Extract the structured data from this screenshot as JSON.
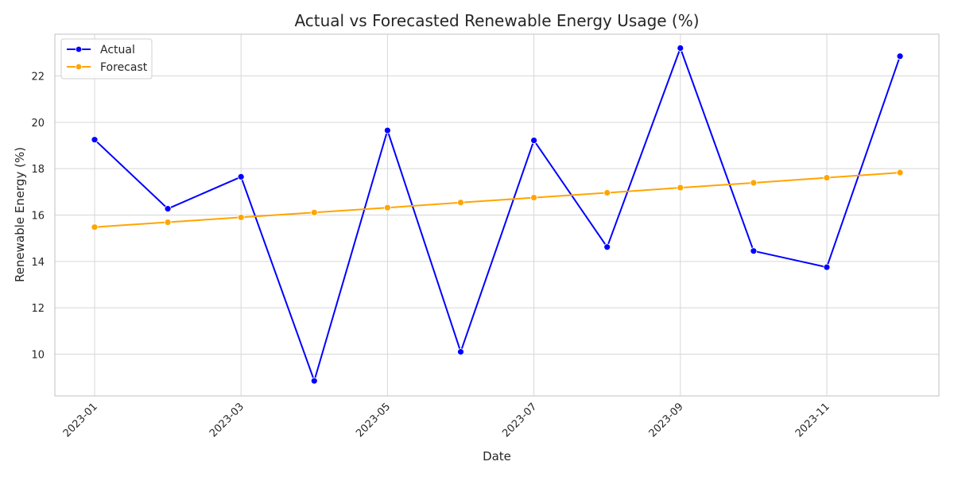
{
  "chart_data": {
    "type": "line",
    "title": "Actual vs Forecasted Renewable Energy Usage (%)",
    "xlabel": "Date",
    "ylabel": "Renewable Energy (%)",
    "x": [
      "2023-01",
      "2023-02",
      "2023-03",
      "2023-04",
      "2023-05",
      "2023-06",
      "2023-07",
      "2023-08",
      "2023-09",
      "2023-10",
      "2023-11",
      "2023-12"
    ],
    "x_tick_labels": [
      "2023-01",
      "2023-03",
      "2023-05",
      "2023-07",
      "2023-09",
      "2023-11"
    ],
    "y_ticks": [
      10,
      12,
      14,
      16,
      18,
      20,
      22
    ],
    "ylim": [
      8.2,
      23.8
    ],
    "grid": true,
    "legend_position": "top-left",
    "series": [
      {
        "name": "Actual",
        "color": "#0000ff",
        "values": [
          19.25,
          16.27,
          17.65,
          8.85,
          19.65,
          10.1,
          19.22,
          14.62,
          23.2,
          14.45,
          13.75,
          22.85
        ]
      },
      {
        "name": "Forecast",
        "color": "#ffa500",
        "values": [
          15.48,
          15.69,
          15.9,
          16.11,
          16.32,
          16.54,
          16.75,
          16.96,
          17.18,
          17.39,
          17.61,
          17.83
        ]
      }
    ]
  }
}
